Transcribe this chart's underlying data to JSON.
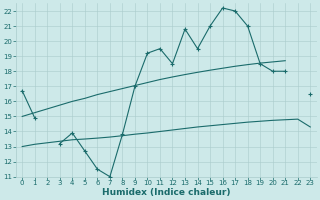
{
  "xlabel": "Humidex (Indice chaleur)",
  "x_values": [
    0,
    1,
    2,
    3,
    4,
    5,
    6,
    7,
    8,
    9,
    10,
    11,
    12,
    13,
    14,
    15,
    16,
    17,
    18,
    19,
    20,
    21,
    22,
    23
  ],
  "y_main": [
    16.7,
    14.9,
    null,
    13.2,
    13.9,
    12.7,
    11.5,
    11.0,
    13.8,
    17.0,
    19.2,
    19.5,
    18.5,
    20.8,
    19.5,
    21.0,
    22.2,
    22.0,
    21.0,
    18.5,
    18.0,
    18.0,
    null,
    16.5
  ],
  "y_upper": [
    15.0,
    15.25,
    15.5,
    15.75,
    16.0,
    16.2,
    16.45,
    16.65,
    16.85,
    17.05,
    17.25,
    17.45,
    17.62,
    17.78,
    17.93,
    18.07,
    18.2,
    18.33,
    18.44,
    18.54,
    18.62,
    18.7,
    null,
    null
  ],
  "y_lower": [
    13.0,
    13.15,
    13.25,
    13.35,
    13.45,
    13.5,
    13.56,
    13.63,
    13.72,
    13.82,
    13.9,
    14.0,
    14.1,
    14.2,
    14.3,
    14.38,
    14.46,
    14.54,
    14.62,
    14.68,
    14.74,
    14.78,
    14.82,
    14.3
  ],
  "bg_color": "#cde9e9",
  "grid_color": "#aacccc",
  "line_color": "#1a6b6b",
  "ylim_min": 11,
  "ylim_max": 22.5,
  "yticks": [
    11,
    12,
    13,
    14,
    15,
    16,
    17,
    18,
    19,
    20,
    21,
    22
  ],
  "xlim_min": -0.5,
  "xlim_max": 23.5,
  "tick_fontsize": 5.0,
  "xlabel_fontsize": 6.5
}
